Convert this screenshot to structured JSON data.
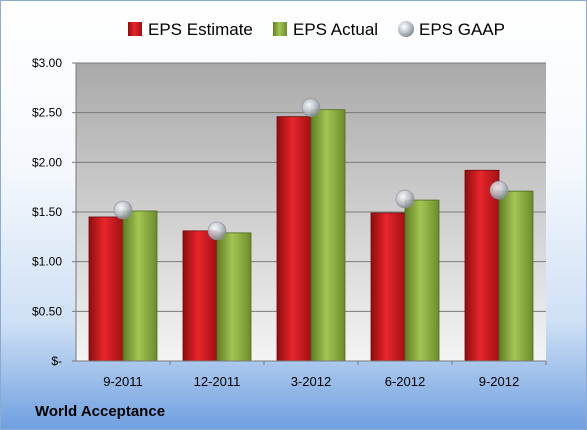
{
  "company": "World Acceptance",
  "chart_data": {
    "type": "bar",
    "title": "",
    "xlabel": "",
    "ylabel": "",
    "categories": [
      "9-2011",
      "12-2011",
      "3-2012",
      "6-2012",
      "9-2012"
    ],
    "series": [
      {
        "name": "EPS Estimate",
        "kind": "bar",
        "color": "#c0161c",
        "values": [
          1.45,
          1.31,
          2.46,
          1.49,
          1.92
        ]
      },
      {
        "name": "EPS Actual",
        "kind": "bar",
        "color": "#86a83c",
        "values": [
          1.51,
          1.29,
          2.53,
          1.62,
          1.71
        ]
      },
      {
        "name": "EPS GAAP",
        "kind": "marker",
        "color": "#b8bec8",
        "values": [
          1.52,
          1.31,
          2.55,
          1.63,
          1.72
        ]
      }
    ],
    "ylim": [
      0,
      3.0
    ],
    "yticks": [
      0,
      0.5,
      1.0,
      1.5,
      2.0,
      2.5,
      3.0
    ],
    "ytick_labels": [
      "$-",
      "$0.50",
      "$1.00",
      "$1.50",
      "$2.00",
      "$2.50",
      "$3.00"
    ],
    "grid": true,
    "legend_position": "top"
  }
}
